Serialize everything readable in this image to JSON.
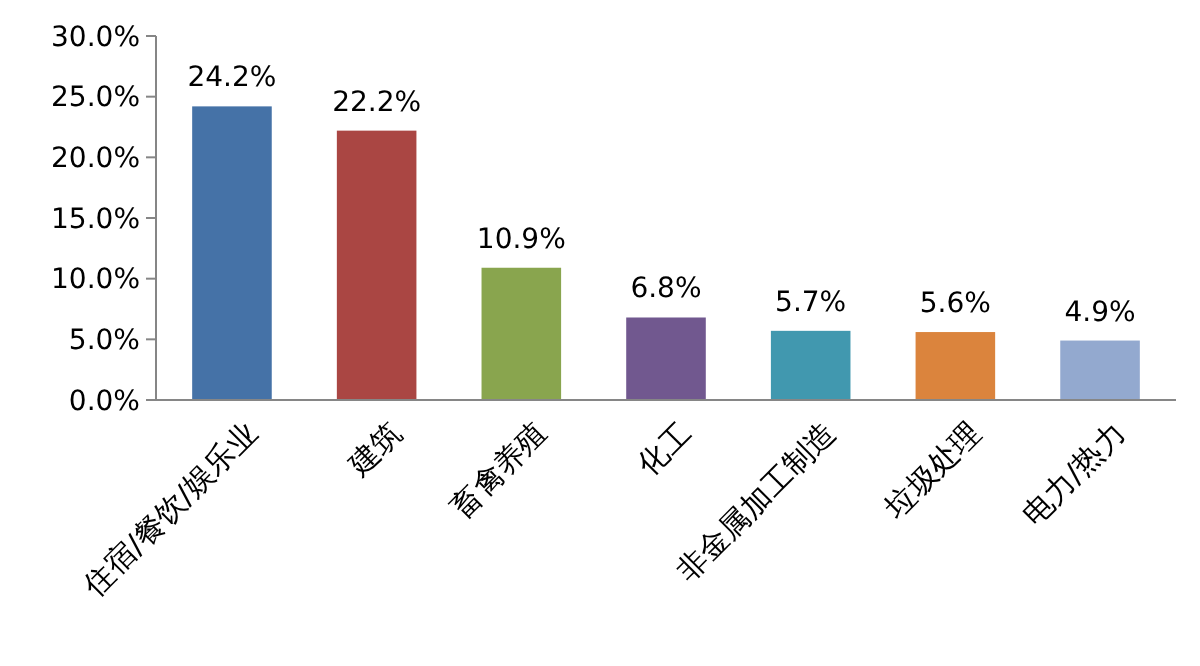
{
  "chart_data": {
    "type": "bar",
    "categories": [
      "住宿/餐饮/娱乐业",
      "建筑",
      "畜禽养殖",
      "化工",
      "非金属加工制造",
      "垃圾处理",
      "电力/热力"
    ],
    "values": [
      24.2,
      22.2,
      10.9,
      6.8,
      5.7,
      5.6,
      4.9
    ],
    "colors": [
      "#4572a7",
      "#aa4643",
      "#89a54e",
      "#71588f",
      "#4198af",
      "#db843d",
      "#93a9cf"
    ],
    "value_labels": [
      "24.2%",
      "22.2%",
      "10.9%",
      "6.8%",
      "5.7%",
      "5.6%",
      "4.9%"
    ],
    "ylim": [
      0,
      30
    ],
    "yticks": [
      {
        "value": 0,
        "label": "0.0%"
      },
      {
        "value": 5,
        "label": "5.0%"
      },
      {
        "value": 10,
        "label": "10.0%"
      },
      {
        "value": 15,
        "label": "15.0%"
      },
      {
        "value": 20,
        "label": "20.0%"
      },
      {
        "value": 25,
        "label": "25.0%"
      },
      {
        "value": 30,
        "label": "30.0%"
      }
    ],
    "grid": false
  }
}
